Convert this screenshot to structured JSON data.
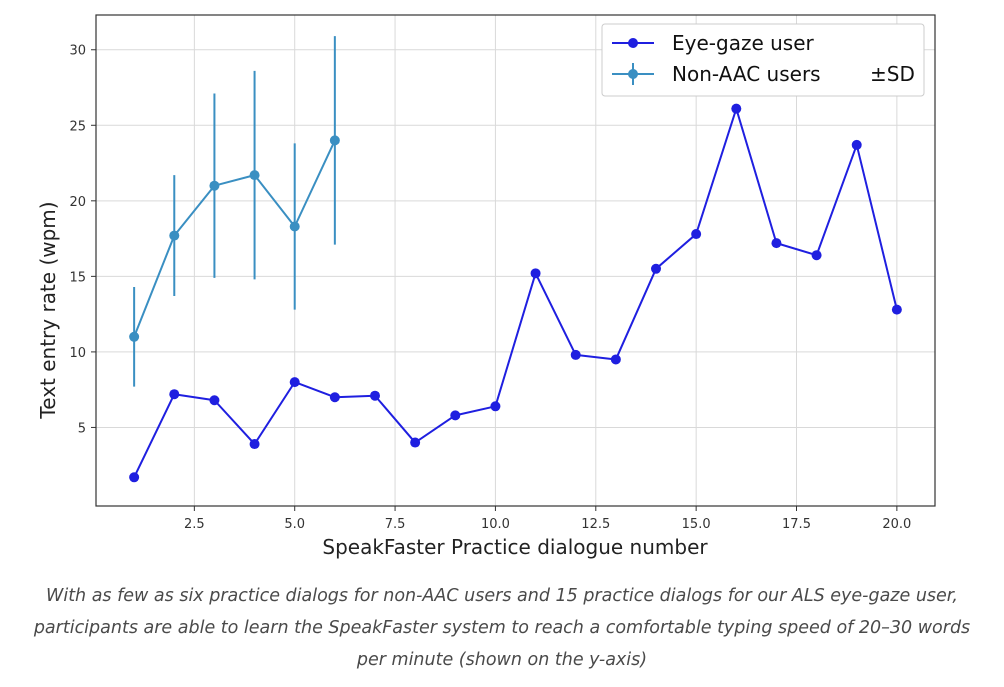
{
  "chart_data": {
    "type": "line",
    "xlabel": "SpeakFaster Practice dialogue number",
    "ylabel": "Text entry rate (wpm)",
    "xlim": [
      0.05,
      20.95
    ],
    "ylim": [
      -0.2,
      32.3
    ],
    "xticks": [
      2.5,
      5.0,
      7.5,
      10.0,
      12.5,
      15.0,
      17.5,
      20.0
    ],
    "xtick_labels": [
      "2.5",
      "5.0",
      "7.5",
      "10.0",
      "12.5",
      "15.0",
      "17.5",
      "20.0"
    ],
    "yticks": [
      5,
      10,
      15,
      20,
      25,
      30
    ],
    "ytick_labels": [
      "5",
      "10",
      "15",
      "20",
      "25",
      "30"
    ],
    "grid": true,
    "legend_position": "top-right",
    "legend_sd_label": "±SD",
    "series": [
      {
        "name": "Eye-gaze user",
        "color": "#1f1fe0",
        "x": [
          1,
          2,
          3,
          4,
          5,
          6,
          7,
          8,
          9,
          10,
          11,
          12,
          13,
          14,
          15,
          16,
          17,
          18,
          19,
          20
        ],
        "y": [
          1.7,
          7.2,
          6.8,
          3.9,
          8.0,
          7.0,
          7.1,
          4.0,
          5.8,
          6.4,
          15.2,
          9.8,
          9.5,
          15.5,
          17.8,
          26.1,
          17.2,
          16.4,
          23.7,
          12.8
        ]
      },
      {
        "name": "Non-AAC users",
        "color": "#3a8fc2",
        "x": [
          1,
          2,
          3,
          4,
          5,
          6
        ],
        "y": [
          11.0,
          17.7,
          21.0,
          21.7,
          18.3,
          24.0
        ],
        "sd": [
          3.3,
          4.0,
          6.1,
          6.9,
          5.5,
          6.9
        ]
      }
    ]
  },
  "caption": "With as few as six practice dialogs for non-AAC users and 15 practice dialogs for our ALS eye-gaze user, participants are able to learn the SpeakFaster system to reach a comfortable typing speed of 20–30 words per minute (shown on the y-axis)"
}
